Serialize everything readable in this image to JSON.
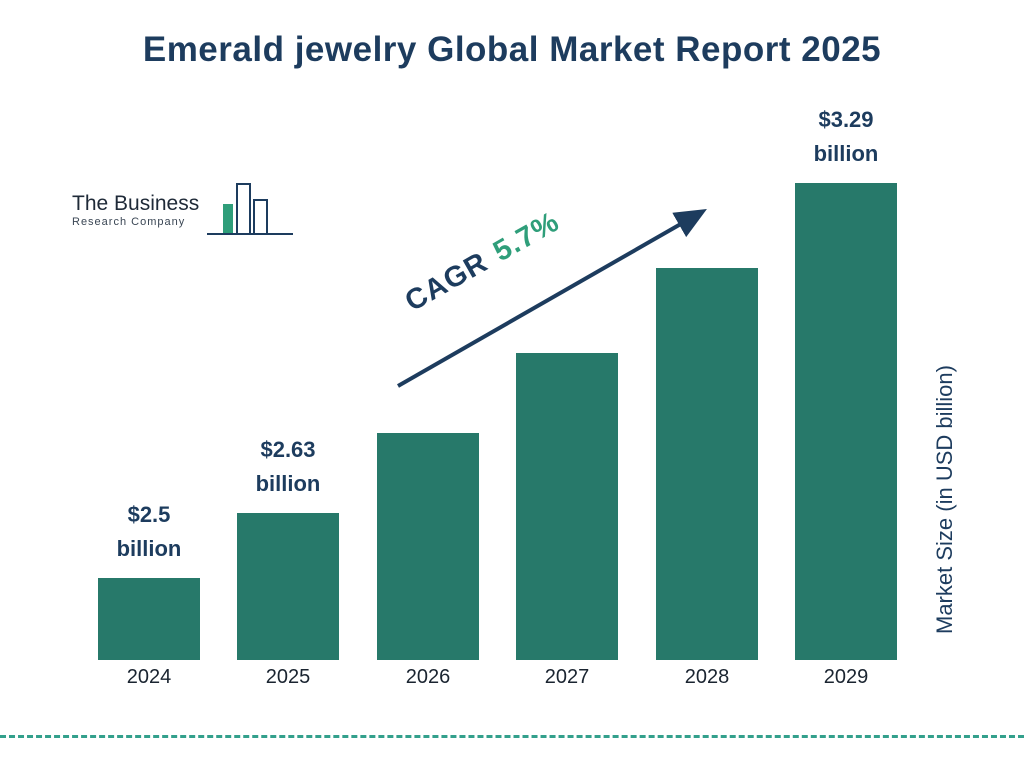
{
  "title": "Emerald jewelry Global Market Report 2025",
  "logo": {
    "line1": "The Business",
    "line2": "Research Company"
  },
  "cagr": {
    "label": "CAGR",
    "value": "5.7%"
  },
  "y_axis_label": "Market Size (in USD billion)",
  "chart_data": {
    "type": "bar",
    "title": "Emerald jewelry Global Market Report 2025",
    "categories": [
      "2024",
      "2025",
      "2026",
      "2027",
      "2028",
      "2029"
    ],
    "values": [
      2.5,
      2.63,
      2.79,
      2.95,
      3.12,
      3.29
    ],
    "labeled_points": [
      {
        "index": 0,
        "line1": "$2.5",
        "line2": "billion"
      },
      {
        "index": 1,
        "line1": "$2.63",
        "line2": "billion"
      },
      {
        "index": 5,
        "line1": "$3.29",
        "line2": "billion"
      }
    ],
    "xlabel": "",
    "ylabel": "Market Size (in USD billion)",
    "ylim": [
      2.336,
      3.29
    ],
    "grid": false,
    "legend": false,
    "cagr_annotation": "CAGR 5.7%",
    "bar_color": "#27796a"
  },
  "colors": {
    "navy": "#1d3c5e",
    "teal_bar": "#27796a",
    "green_accent": "#2f9e7a",
    "dash_line": "#33a08c"
  }
}
